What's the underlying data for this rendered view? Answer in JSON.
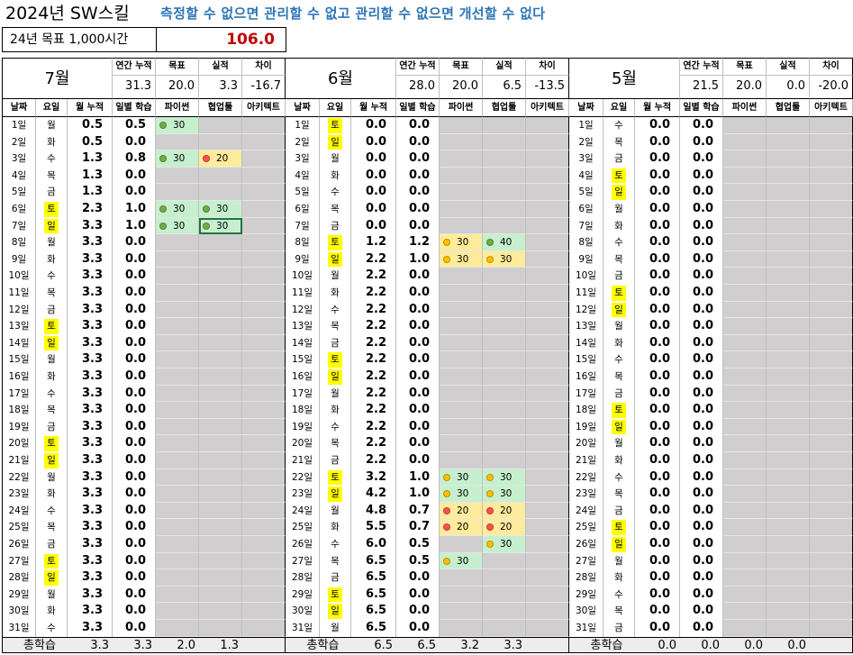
{
  "title": "2024년 SW스킬",
  "slogan": "측정할 수 없으면 관리할 수 없고 관리할 수 없으면 개선할 수 없다",
  "goal": {
    "label": "24년 목표 1,000시간",
    "value": "106.0"
  },
  "headers": {
    "annual_cum": "연간 누적",
    "target": "목표",
    "actual": "실적",
    "diff": "차이",
    "date": "날짜",
    "weekday": "요일",
    "month_cum": "월 누적",
    "daily": "일별 학습",
    "python": "파이썬",
    "collab": "협업툴",
    "arch": "아키텍트",
    "total": "총학습"
  },
  "colors": {
    "weekend": "#ffff00",
    "grey": "#d0cece",
    "green": "#c6efce",
    "yellow": "#ffeb9c",
    "dot_green": "#70ad47",
    "dot_yellow": "#ffc000",
    "dot_red": "#ff5050"
  },
  "panels": [
    {
      "month": "7월",
      "summary": {
        "annual_cum": "31.3",
        "target": "20.0",
        "actual": "3.3",
        "diff": "-16.7"
      },
      "rows": [
        {
          "date": "1일",
          "wd": "월",
          "cum": "0.5",
          "daily": "0.5",
          "py": "30",
          "co": "",
          "ar": ""
        },
        {
          "date": "2일",
          "wd": "화",
          "cum": "0.5",
          "daily": "0.0",
          "py": "",
          "co": "",
          "ar": ""
        },
        {
          "date": "3일",
          "wd": "수",
          "cum": "1.3",
          "daily": "0.8",
          "py": "30",
          "co": "20",
          "ar": ""
        },
        {
          "date": "4일",
          "wd": "목",
          "cum": "1.3",
          "daily": "0.0",
          "py": "",
          "co": "",
          "ar": ""
        },
        {
          "date": "5일",
          "wd": "금",
          "cum": "1.3",
          "daily": "0.0",
          "py": "",
          "co": "",
          "ar": ""
        },
        {
          "date": "6일",
          "wd": "토",
          "cum": "2.3",
          "daily": "1.0",
          "py": "30",
          "co": "30",
          "ar": ""
        },
        {
          "date": "7일",
          "wd": "일",
          "cum": "3.3",
          "daily": "1.0",
          "py": "30",
          "co": "30",
          "ar": ""
        },
        {
          "date": "8일",
          "wd": "월",
          "cum": "3.3",
          "daily": "0.0",
          "py": "",
          "co": "",
          "ar": ""
        },
        {
          "date": "9일",
          "wd": "화",
          "cum": "3.3",
          "daily": "0.0",
          "py": "",
          "co": "",
          "ar": ""
        },
        {
          "date": "10일",
          "wd": "수",
          "cum": "3.3",
          "daily": "0.0",
          "py": "",
          "co": "",
          "ar": ""
        },
        {
          "date": "11일",
          "wd": "목",
          "cum": "3.3",
          "daily": "0.0",
          "py": "",
          "co": "",
          "ar": ""
        },
        {
          "date": "12일",
          "wd": "금",
          "cum": "3.3",
          "daily": "0.0",
          "py": "",
          "co": "",
          "ar": ""
        },
        {
          "date": "13일",
          "wd": "토",
          "cum": "3.3",
          "daily": "0.0",
          "py": "",
          "co": "",
          "ar": ""
        },
        {
          "date": "14일",
          "wd": "일",
          "cum": "3.3",
          "daily": "0.0",
          "py": "",
          "co": "",
          "ar": ""
        },
        {
          "date": "15일",
          "wd": "월",
          "cum": "3.3",
          "daily": "0.0",
          "py": "",
          "co": "",
          "ar": ""
        },
        {
          "date": "16일",
          "wd": "화",
          "cum": "3.3",
          "daily": "0.0",
          "py": "",
          "co": "",
          "ar": ""
        },
        {
          "date": "17일",
          "wd": "수",
          "cum": "3.3",
          "daily": "0.0",
          "py": "",
          "co": "",
          "ar": ""
        },
        {
          "date": "18일",
          "wd": "목",
          "cum": "3.3",
          "daily": "0.0",
          "py": "",
          "co": "",
          "ar": ""
        },
        {
          "date": "19일",
          "wd": "금",
          "cum": "3.3",
          "daily": "0.0",
          "py": "",
          "co": "",
          "ar": ""
        },
        {
          "date": "20일",
          "wd": "토",
          "cum": "3.3",
          "daily": "0.0",
          "py": "",
          "co": "",
          "ar": ""
        },
        {
          "date": "21일",
          "wd": "일",
          "cum": "3.3",
          "daily": "0.0",
          "py": "",
          "co": "",
          "ar": ""
        },
        {
          "date": "22일",
          "wd": "월",
          "cum": "3.3",
          "daily": "0.0",
          "py": "",
          "co": "",
          "ar": ""
        },
        {
          "date": "23일",
          "wd": "화",
          "cum": "3.3",
          "daily": "0.0",
          "py": "",
          "co": "",
          "ar": ""
        },
        {
          "date": "24일",
          "wd": "수",
          "cum": "3.3",
          "daily": "0.0",
          "py": "",
          "co": "",
          "ar": ""
        },
        {
          "date": "25일",
          "wd": "목",
          "cum": "3.3",
          "daily": "0.0",
          "py": "",
          "co": "",
          "ar": ""
        },
        {
          "date": "26일",
          "wd": "금",
          "cum": "3.3",
          "daily": "0.0",
          "py": "",
          "co": "",
          "ar": ""
        },
        {
          "date": "27일",
          "wd": "토",
          "cum": "3.3",
          "daily": "0.0",
          "py": "",
          "co": "",
          "ar": ""
        },
        {
          "date": "28일",
          "wd": "일",
          "cum": "3.3",
          "daily": "0.0",
          "py": "",
          "co": "",
          "ar": ""
        },
        {
          "date": "29일",
          "wd": "월",
          "cum": "3.3",
          "daily": "0.0",
          "py": "",
          "co": "",
          "ar": ""
        },
        {
          "date": "30일",
          "wd": "화",
          "cum": "3.3",
          "daily": "0.0",
          "py": "",
          "co": "",
          "ar": ""
        },
        {
          "date": "31일",
          "wd": "수",
          "cum": "3.3",
          "daily": "0.0",
          "py": "",
          "co": "",
          "ar": ""
        }
      ],
      "totals": {
        "month_cum": "3.3",
        "daily": "3.3",
        "py": "2.0",
        "co": "1.3",
        "ar": ""
      }
    },
    {
      "month": "6월",
      "summary": {
        "annual_cum": "28.0",
        "target": "20.0",
        "actual": "6.5",
        "diff": "-13.5"
      },
      "rows": [
        {
          "date": "1일",
          "wd": "토",
          "cum": "0.0",
          "daily": "0.0",
          "py": "",
          "co": "",
          "ar": ""
        },
        {
          "date": "2일",
          "wd": "일",
          "cum": "0.0",
          "daily": "0.0",
          "py": "",
          "co": "",
          "ar": ""
        },
        {
          "date": "3일",
          "wd": "월",
          "cum": "0.0",
          "daily": "0.0",
          "py": "",
          "co": "",
          "ar": ""
        },
        {
          "date": "4일",
          "wd": "화",
          "cum": "0.0",
          "daily": "0.0",
          "py": "",
          "co": "",
          "ar": ""
        },
        {
          "date": "5일",
          "wd": "수",
          "cum": "0.0",
          "daily": "0.0",
          "py": "",
          "co": "",
          "ar": ""
        },
        {
          "date": "6일",
          "wd": "목",
          "cum": "0.0",
          "daily": "0.0",
          "py": "",
          "co": "",
          "ar": ""
        },
        {
          "date": "7일",
          "wd": "금",
          "cum": "0.0",
          "daily": "0.0",
          "py": "",
          "co": "",
          "ar": ""
        },
        {
          "date": "8일",
          "wd": "토",
          "cum": "1.2",
          "daily": "1.2",
          "py": "30",
          "co": "40",
          "ar": ""
        },
        {
          "date": "9일",
          "wd": "일",
          "cum": "2.2",
          "daily": "1.0",
          "py": "30",
          "co": "30",
          "ar": ""
        },
        {
          "date": "10일",
          "wd": "월",
          "cum": "2.2",
          "daily": "0.0",
          "py": "",
          "co": "",
          "ar": ""
        },
        {
          "date": "11일",
          "wd": "화",
          "cum": "2.2",
          "daily": "0.0",
          "py": "",
          "co": "",
          "ar": ""
        },
        {
          "date": "12일",
          "wd": "수",
          "cum": "2.2",
          "daily": "0.0",
          "py": "",
          "co": "",
          "ar": ""
        },
        {
          "date": "13일",
          "wd": "목",
          "cum": "2.2",
          "daily": "0.0",
          "py": "",
          "co": "",
          "ar": ""
        },
        {
          "date": "14일",
          "wd": "금",
          "cum": "2.2",
          "daily": "0.0",
          "py": "",
          "co": "",
          "ar": ""
        },
        {
          "date": "15일",
          "wd": "토",
          "cum": "2.2",
          "daily": "0.0",
          "py": "",
          "co": "",
          "ar": ""
        },
        {
          "date": "16일",
          "wd": "일",
          "cum": "2.2",
          "daily": "0.0",
          "py": "",
          "co": "",
          "ar": ""
        },
        {
          "date": "17일",
          "wd": "월",
          "cum": "2.2",
          "daily": "0.0",
          "py": "",
          "co": "",
          "ar": ""
        },
        {
          "date": "18일",
          "wd": "화",
          "cum": "2.2",
          "daily": "0.0",
          "py": "",
          "co": "",
          "ar": ""
        },
        {
          "date": "19일",
          "wd": "수",
          "cum": "2.2",
          "daily": "0.0",
          "py": "",
          "co": "",
          "ar": ""
        },
        {
          "date": "20일",
          "wd": "목",
          "cum": "2.2",
          "daily": "0.0",
          "py": "",
          "co": "",
          "ar": ""
        },
        {
          "date": "21일",
          "wd": "금",
          "cum": "2.2",
          "daily": "0.0",
          "py": "",
          "co": "",
          "ar": ""
        },
        {
          "date": "22일",
          "wd": "토",
          "cum": "3.2",
          "daily": "1.0",
          "py": "30",
          "co": "30",
          "ar": ""
        },
        {
          "date": "23일",
          "wd": "일",
          "cum": "4.2",
          "daily": "1.0",
          "py": "30",
          "co": "30",
          "ar": ""
        },
        {
          "date": "24일",
          "wd": "월",
          "cum": "4.8",
          "daily": "0.7",
          "py": "20",
          "co": "20",
          "ar": ""
        },
        {
          "date": "25일",
          "wd": "화",
          "cum": "5.5",
          "daily": "0.7",
          "py": "20",
          "co": "20",
          "ar": ""
        },
        {
          "date": "26일",
          "wd": "수",
          "cum": "6.0",
          "daily": "0.5",
          "py": "",
          "co": "30",
          "ar": ""
        },
        {
          "date": "27일",
          "wd": "목",
          "cum": "6.5",
          "daily": "0.5",
          "py": "30",
          "co": "",
          "ar": ""
        },
        {
          "date": "28일",
          "wd": "금",
          "cum": "6.5",
          "daily": "0.0",
          "py": "",
          "co": "",
          "ar": ""
        },
        {
          "date": "29일",
          "wd": "토",
          "cum": "6.5",
          "daily": "0.0",
          "py": "",
          "co": "",
          "ar": ""
        },
        {
          "date": "30일",
          "wd": "일",
          "cum": "6.5",
          "daily": "0.0",
          "py": "",
          "co": "",
          "ar": ""
        },
        {
          "date": "31일",
          "wd": "월",
          "cum": "6.5",
          "daily": "0.0",
          "py": "",
          "co": "",
          "ar": ""
        }
      ],
      "totals": {
        "month_cum": "6.5",
        "daily": "6.5",
        "py": "3.2",
        "co": "3.3",
        "ar": ""
      }
    },
    {
      "month": "5월",
      "summary": {
        "annual_cum": "21.5",
        "target": "20.0",
        "actual": "0.0",
        "diff": "-20.0"
      },
      "rows": [
        {
          "date": "1일",
          "wd": "수",
          "cum": "0.0",
          "daily": "0.0",
          "py": "",
          "co": "",
          "ar": ""
        },
        {
          "date": "2일",
          "wd": "목",
          "cum": "0.0",
          "daily": "0.0",
          "py": "",
          "co": "",
          "ar": ""
        },
        {
          "date": "3일",
          "wd": "금",
          "cum": "0.0",
          "daily": "0.0",
          "py": "",
          "co": "",
          "ar": ""
        },
        {
          "date": "4일",
          "wd": "토",
          "cum": "0.0",
          "daily": "0.0",
          "py": "",
          "co": "",
          "ar": ""
        },
        {
          "date": "5일",
          "wd": "일",
          "cum": "0.0",
          "daily": "0.0",
          "py": "",
          "co": "",
          "ar": ""
        },
        {
          "date": "6일",
          "wd": "월",
          "cum": "0.0",
          "daily": "0.0",
          "py": "",
          "co": "",
          "ar": ""
        },
        {
          "date": "7일",
          "wd": "화",
          "cum": "0.0",
          "daily": "0.0",
          "py": "",
          "co": "",
          "ar": ""
        },
        {
          "date": "8일",
          "wd": "수",
          "cum": "0.0",
          "daily": "0.0",
          "py": "",
          "co": "",
          "ar": ""
        },
        {
          "date": "9일",
          "wd": "목",
          "cum": "0.0",
          "daily": "0.0",
          "py": "",
          "co": "",
          "ar": ""
        },
        {
          "date": "10일",
          "wd": "금",
          "cum": "0.0",
          "daily": "0.0",
          "py": "",
          "co": "",
          "ar": ""
        },
        {
          "date": "11일",
          "wd": "토",
          "cum": "0.0",
          "daily": "0.0",
          "py": "",
          "co": "",
          "ar": ""
        },
        {
          "date": "12일",
          "wd": "일",
          "cum": "0.0",
          "daily": "0.0",
          "py": "",
          "co": "",
          "ar": ""
        },
        {
          "date": "13일",
          "wd": "월",
          "cum": "0.0",
          "daily": "0.0",
          "py": "",
          "co": "",
          "ar": ""
        },
        {
          "date": "14일",
          "wd": "화",
          "cum": "0.0",
          "daily": "0.0",
          "py": "",
          "co": "",
          "ar": ""
        },
        {
          "date": "15일",
          "wd": "수",
          "cum": "0.0",
          "daily": "0.0",
          "py": "",
          "co": "",
          "ar": ""
        },
        {
          "date": "16일",
          "wd": "목",
          "cum": "0.0",
          "daily": "0.0",
          "py": "",
          "co": "",
          "ar": ""
        },
        {
          "date": "17일",
          "wd": "금",
          "cum": "0.0",
          "daily": "0.0",
          "py": "",
          "co": "",
          "ar": ""
        },
        {
          "date": "18일",
          "wd": "토",
          "cum": "0.0",
          "daily": "0.0",
          "py": "",
          "co": "",
          "ar": ""
        },
        {
          "date": "19일",
          "wd": "일",
          "cum": "0.0",
          "daily": "0.0",
          "py": "",
          "co": "",
          "ar": ""
        },
        {
          "date": "20일",
          "wd": "월",
          "cum": "0.0",
          "daily": "0.0",
          "py": "",
          "co": "",
          "ar": ""
        },
        {
          "date": "21일",
          "wd": "화",
          "cum": "0.0",
          "daily": "0.0",
          "py": "",
          "co": "",
          "ar": ""
        },
        {
          "date": "22일",
          "wd": "수",
          "cum": "0.0",
          "daily": "0.0",
          "py": "",
          "co": "",
          "ar": ""
        },
        {
          "date": "23일",
          "wd": "목",
          "cum": "0.0",
          "daily": "0.0",
          "py": "",
          "co": "",
          "ar": ""
        },
        {
          "date": "24일",
          "wd": "금",
          "cum": "0.0",
          "daily": "0.0",
          "py": "",
          "co": "",
          "ar": ""
        },
        {
          "date": "25일",
          "wd": "토",
          "cum": "0.0",
          "daily": "0.0",
          "py": "",
          "co": "",
          "ar": ""
        },
        {
          "date": "26일",
          "wd": "일",
          "cum": "0.0",
          "daily": "0.0",
          "py": "",
          "co": "",
          "ar": ""
        },
        {
          "date": "27일",
          "wd": "월",
          "cum": "0.0",
          "daily": "0.0",
          "py": "",
          "co": "",
          "ar": ""
        },
        {
          "date": "28일",
          "wd": "화",
          "cum": "0.0",
          "daily": "0.0",
          "py": "",
          "co": "",
          "ar": ""
        },
        {
          "date": "29일",
          "wd": "수",
          "cum": "0.0",
          "daily": "0.0",
          "py": "",
          "co": "",
          "ar": ""
        },
        {
          "date": "30일",
          "wd": "목",
          "cum": "0.0",
          "daily": "0.0",
          "py": "",
          "co": "",
          "ar": ""
        },
        {
          "date": "31일",
          "wd": "금",
          "cum": "0.0",
          "daily": "0.0",
          "py": "",
          "co": "",
          "ar": ""
        }
      ],
      "totals": {
        "month_cum": "0.0",
        "daily": "0.0",
        "py": "0.0",
        "co": "0.0",
        "ar": ""
      }
    }
  ]
}
